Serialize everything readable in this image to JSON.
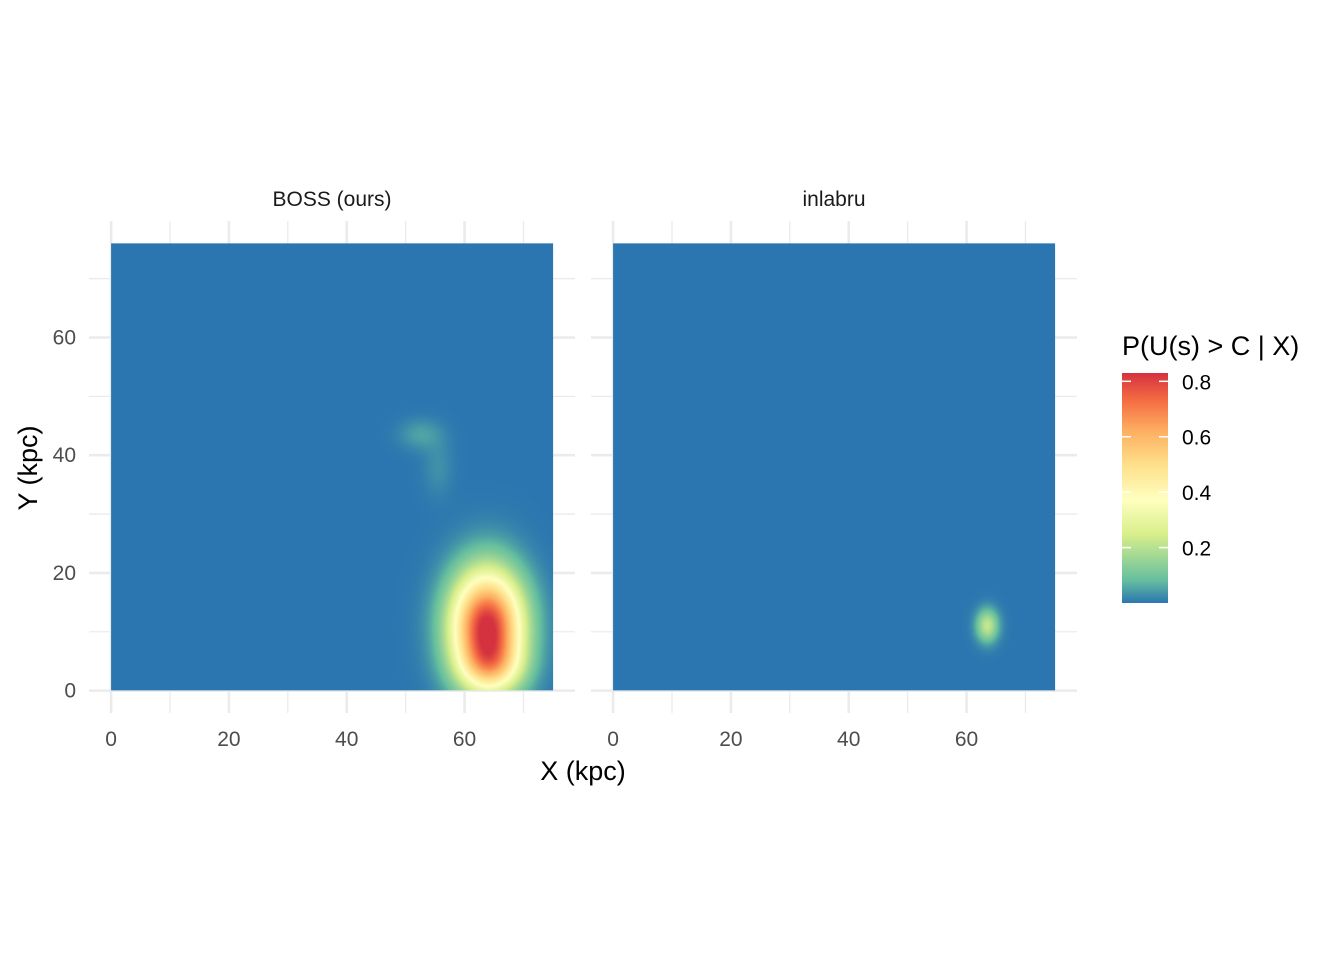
{
  "chart_data": {
    "type": "heatmap",
    "facets": [
      {
        "title": "BOSS (ours)",
        "blobs": [
          {
            "x": 63.8,
            "y": 10.8,
            "sx": 4.2,
            "sy": 6.5,
            "peak": 0.85
          },
          {
            "x": 64.5,
            "y": 4.0,
            "sx": 3.6,
            "sy": 3.0,
            "peak": 0.22
          },
          {
            "x": 52.5,
            "y": 43.5,
            "sx": 2.5,
            "sy": 1.8,
            "peak": 0.05
          },
          {
            "x": 55.5,
            "y": 38.0,
            "sx": 1.8,
            "sy": 3.5,
            "peak": 0.03
          }
        ]
      },
      {
        "title": "inlabru",
        "blobs": [
          {
            "x": 63.5,
            "y": 11.0,
            "sx": 1.3,
            "sy": 1.9,
            "peak": 0.22
          }
        ]
      }
    ],
    "xlabel": "X (kpc)",
    "ylabel": "Y (kpc)",
    "xlim": [
      -3.75,
      78.75
    ],
    "ylim": [
      -3.8,
      79.8
    ],
    "data_extent": {
      "x": [
        0,
        75
      ],
      "y": [
        0,
        76
      ]
    },
    "xticks": [
      0,
      20,
      40,
      60
    ],
    "yticks": [
      0,
      20,
      40,
      60
    ],
    "grid": true,
    "legend": {
      "title": "P(U(s) > C | X)",
      "position": "right",
      "ticks": [
        0.2,
        0.4,
        0.6,
        0.8
      ],
      "range": [
        0,
        0.83
      ]
    },
    "colors": {
      "palette": [
        "#2B76B0",
        "#66BF9E",
        "#D9EF8B",
        "#FFFFBF",
        "#FEE08B",
        "#FDAE61",
        "#F46D43",
        "#D5323F"
      ],
      "panel_bg": "#ffffff",
      "grid": "#EBEBEB"
    }
  }
}
